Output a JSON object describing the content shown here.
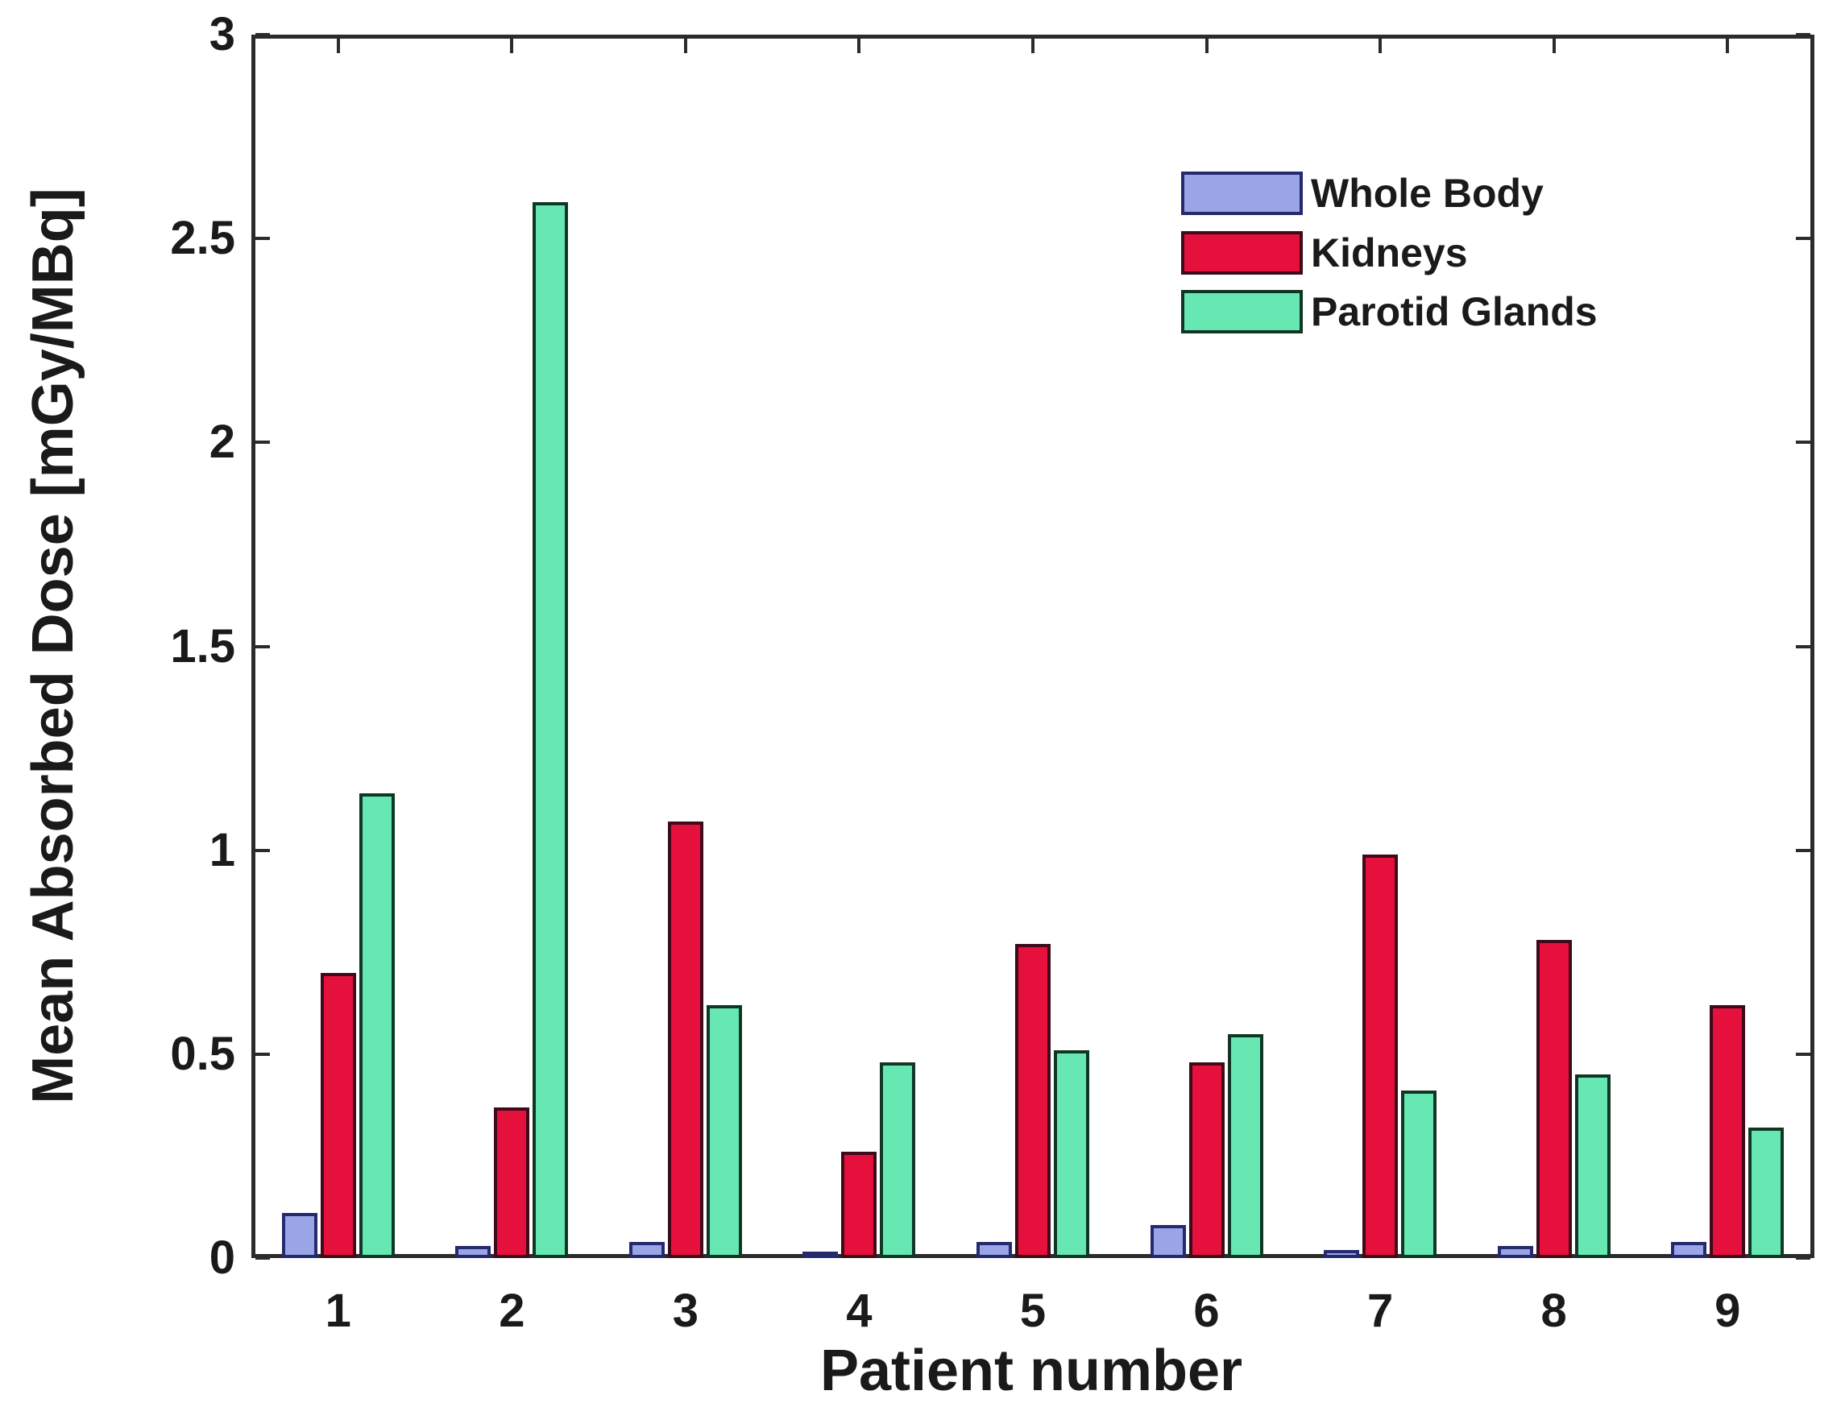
{
  "figure": {
    "background": "#ffffff",
    "axis_color": "#2b2b2b",
    "text_color": "#1a1a1a"
  },
  "chart_data": {
    "type": "bar",
    "title": "",
    "xlabel": "Patient number",
    "ylabel": "Mean Absorbed Dose [mGy/MBq]",
    "categories": [
      "1",
      "2",
      "3",
      "4",
      "5",
      "6",
      "7",
      "8",
      "9"
    ],
    "series": [
      {
        "name": "Whole Body",
        "fill": "#9aa5e6",
        "edge": "#252a6e",
        "values": [
          0.11,
          0.03,
          0.04,
          0.015,
          0.04,
          0.08,
          0.02,
          0.03,
          0.04
        ]
      },
      {
        "name": "Kidneys",
        "fill": "#e6103c",
        "edge": "#3f0a1a",
        "values": [
          0.7,
          0.37,
          1.07,
          0.26,
          0.77,
          0.48,
          0.99,
          0.78,
          0.62
        ]
      },
      {
        "name": "Parotid Glands",
        "fill": "#67e8b3",
        "edge": "#103626",
        "values": [
          1.14,
          2.59,
          0.62,
          0.48,
          0.51,
          0.55,
          0.41,
          0.45,
          0.32
        ]
      }
    ],
    "ylim": [
      0,
      3
    ],
    "yticks": [
      0,
      0.5,
      1,
      1.5,
      2,
      2.5,
      3
    ],
    "ytick_labels": [
      "0",
      "0.5",
      "1",
      "1.5",
      "2",
      "2.5",
      "3"
    ],
    "grid": false,
    "legend_position": "upper-right-inside",
    "legend_box": false
  }
}
